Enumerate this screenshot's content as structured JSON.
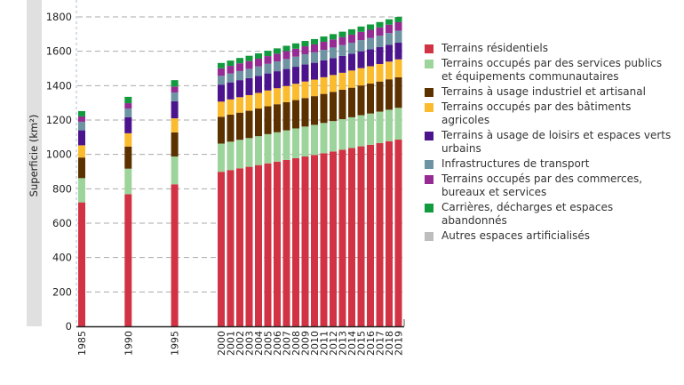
{
  "chart_data": {
    "type": "bar",
    "stacked": true,
    "ylabel": "Superficie (km²)",
    "xlabel": "",
    "ylim": [
      0,
      1800
    ],
    "yticks": [
      0,
      200,
      400,
      600,
      800,
      1000,
      1200,
      1400,
      1600,
      1800
    ],
    "grid": true,
    "legend_position": "right",
    "categories": [
      "1985",
      "1990",
      "1995",
      "2000",
      "2001",
      "2002",
      "2003",
      "2004",
      "2005",
      "2006",
      "2007",
      "2008",
      "2009",
      "2010",
      "2011",
      "2012",
      "2013",
      "2014",
      "2015",
      "2016",
      "2017",
      "2018",
      "2019"
    ],
    "series": [
      {
        "name": "Terrains résidentiels",
        "color": "#d13344",
        "values": [
          721,
          768,
          826,
          899,
          909,
          919,
          928,
          938,
          948,
          958,
          968,
          978,
          988,
          997,
          1007,
          1017,
          1027,
          1037,
          1047,
          1056,
          1066,
          1076,
          1086
        ]
      },
      {
        "name": "Terrains occupés par des services publics et équipements communautaires",
        "color": "#9dd49b",
        "values": [
          141,
          149,
          162,
          164,
          165,
          166,
          167,
          168,
          170,
          171,
          172,
          173,
          174,
          175,
          176,
          177,
          178,
          179,
          181,
          182,
          183,
          184,
          185
        ]
      },
      {
        "name": "Terrains à usage industriel et artisanal",
        "color": "#5c3100",
        "values": [
          120,
          129,
          140,
          156,
          157,
          158,
          159,
          161,
          162,
          163,
          164,
          165,
          166,
          167,
          169,
          170,
          171,
          172,
          173,
          174,
          175,
          177,
          178
        ]
      },
      {
        "name": "Terrains occupés par des bâtiments agricoles",
        "color": "#fbbb2e",
        "values": [
          71,
          77,
          82,
          88,
          89,
          90,
          91,
          91,
          92,
          93,
          94,
          95,
          96,
          96,
          97,
          98,
          99,
          100,
          101,
          101,
          102,
          103,
          104
        ]
      },
      {
        "name": "Terrains à usage de loisirs et espaces verts urbains",
        "color": "#4b148c",
        "values": [
          87,
          94,
          99,
          99,
          99,
          99,
          99,
          99,
          99,
          99,
          99,
          99,
          99,
          98,
          98,
          98,
          98,
          98,
          98,
          98,
          98,
          98,
          98
        ]
      },
      {
        "name": "Infrastructures de transport",
        "color": "#6e93a3",
        "values": [
          50,
          50,
          51,
          51,
          52,
          53,
          54,
          55,
          56,
          57,
          58,
          59,
          60,
          61,
          61,
          62,
          63,
          64,
          65,
          66,
          67,
          68,
          69
        ]
      },
      {
        "name": "Terrains occupés par des commerces, bureaux et services",
        "color": "#952b93",
        "values": [
          31,
          31,
          35,
          44,
          44,
          45,
          45,
          45,
          45,
          45,
          46,
          46,
          46,
          46,
          47,
          47,
          47,
          47,
          48,
          48,
          48,
          49,
          49
        ]
      },
      {
        "name": "Carrières, décharges et espaces abandonnés",
        "color": "#129a3e",
        "values": [
          31,
          37,
          37,
          31,
          31,
          31,
          31,
          31,
          31,
          31,
          31,
          31,
          31,
          31,
          31,
          31,
          31,
          31,
          31,
          31,
          31,
          31,
          31
        ]
      },
      {
        "name": "Autres espaces artificialisés",
        "color": "#bdbdbd",
        "values": [
          0,
          0,
          0,
          0,
          0,
          0,
          0,
          0,
          0,
          0,
          0,
          0,
          0,
          0,
          0,
          0,
          0,
          0,
          0,
          0,
          0,
          0,
          0
        ]
      }
    ]
  }
}
